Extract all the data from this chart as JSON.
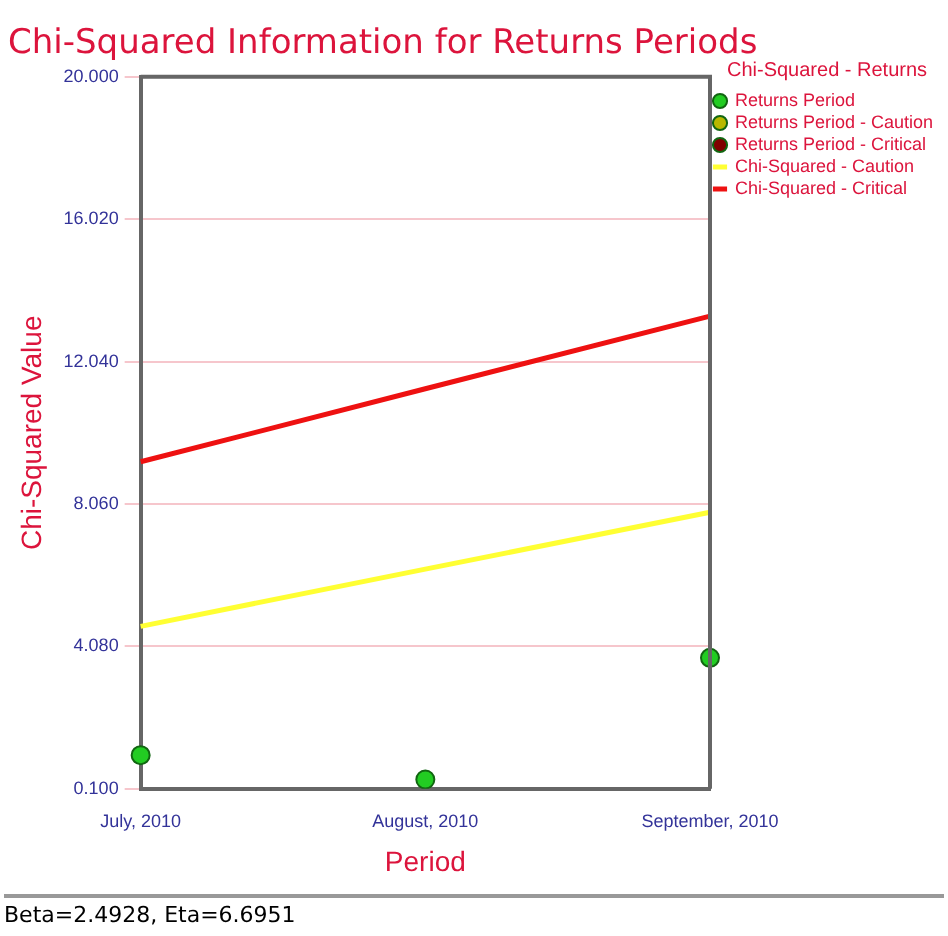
{
  "chart_data": {
    "type": "line",
    "title": "Chi-Squared Information for Returns Periods",
    "xlabel": "Period",
    "ylabel": "Chi-Squared Value",
    "legend_title": "Chi-Squared - Returns",
    "categories": [
      "July, 2010",
      "August, 2010",
      "September, 2010"
    ],
    "series": [
      {
        "name": "Returns Period",
        "type": "scatter",
        "marker": "circle",
        "color": "#22cc22",
        "values": [
          1.04,
          0.36,
          3.76
        ]
      },
      {
        "name": "Returns Period - Caution",
        "type": "scatter",
        "marker": "circle",
        "color": "#b8b800",
        "values": [
          null,
          null,
          null
        ]
      },
      {
        "name": "Returns Period - Critical",
        "type": "scatter",
        "marker": "circle",
        "color": "#800000",
        "values": [
          null,
          null,
          null
        ]
      },
      {
        "name": "Chi-Squared - Caution",
        "type": "line",
        "color": "#ffff33",
        "values": [
          4.64,
          6.24,
          7.83
        ]
      },
      {
        "name": "Chi-Squared - Critical",
        "type": "line",
        "color": "#ee1111",
        "values": [
          9.24,
          11.28,
          13.31
        ]
      }
    ],
    "ylim": [
      0.1,
      20.0
    ],
    "yticks": [
      {
        "value": 0.1,
        "label": "0.100"
      },
      {
        "value": 4.08,
        "label": "4.080"
      },
      {
        "value": 8.06,
        "label": "8.060"
      },
      {
        "value": 12.04,
        "label": "12.040"
      },
      {
        "value": 16.02,
        "label": "16.020"
      },
      {
        "value": 20.0,
        "label": "20.000"
      }
    ],
    "grid": "y",
    "legend": "top right",
    "annotations": [
      "Beta=2.4928, Eta=6.6951"
    ]
  }
}
